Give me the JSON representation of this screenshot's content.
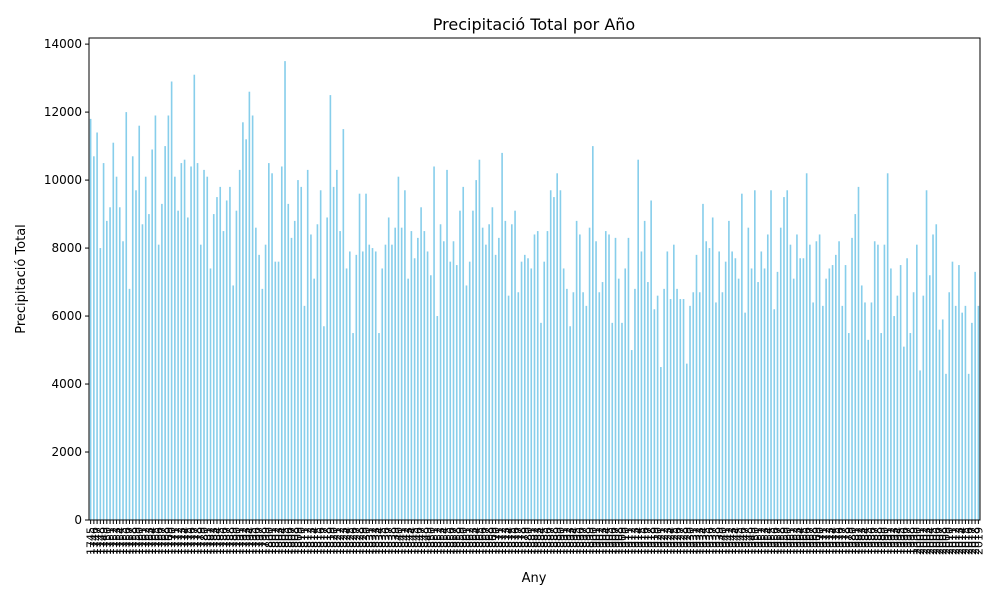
{
  "chart_data": {
    "type": "bar",
    "title": "Precipitació Total por Año",
    "x_label": "Any",
    "y_label": "Precipitació Total",
    "color": "#87ceeb",
    "categories": [
      1745,
      1746,
      1747,
      1748,
      1749,
      1750,
      1751,
      1752,
      1753,
      1754,
      1755,
      1756,
      1757,
      1758,
      1759,
      1760,
      1761,
      1762,
      1763,
      1764,
      1765,
      1766,
      1767,
      1768,
      1769,
      1770,
      1771,
      1772,
      1773,
      1774,
      1775,
      1776,
      1777,
      1778,
      1779,
      1780,
      1781,
      1782,
      1783,
      1784,
      1785,
      1786,
      1787,
      1788,
      1789,
      1790,
      1791,
      1792,
      1793,
      1794,
      1795,
      1796,
      1797,
      1798,
      1799,
      1800,
      1801,
      1802,
      1803,
      1804,
      1805,
      1806,
      1807,
      1808,
      1809,
      1810,
      1811,
      1812,
      1813,
      1814,
      1815,
      1816,
      1817,
      1818,
      1819,
      1820,
      1821,
      1822,
      1823,
      1824,
      1825,
      1826,
      1827,
      1828,
      1829,
      1830,
      1831,
      1832,
      1833,
      1834,
      1835,
      1836,
      1837,
      1838,
      1839,
      1840,
      1841,
      1842,
      1843,
      1844,
      1845,
      1846,
      1847,
      1848,
      1849,
      1850,
      1851,
      1852,
      1853,
      1854,
      1855,
      1856,
      1857,
      1858,
      1859,
      1860,
      1861,
      1862,
      1863,
      1864,
      1865,
      1866,
      1867,
      1868,
      1869,
      1870,
      1871,
      1872,
      1873,
      1874,
      1875,
      1876,
      1877,
      1878,
      1879,
      1880,
      1881,
      1882,
      1883,
      1884,
      1885,
      1886,
      1887,
      1888,
      1889,
      1890,
      1891,
      1892,
      1893,
      1894,
      1895,
      1896,
      1897,
      1898,
      1899,
      1900,
      1901,
      1902,
      1903,
      1904,
      1905,
      1906,
      1907,
      1908,
      1909,
      1910,
      1911,
      1912,
      1913,
      1914,
      1915,
      1916,
      1917,
      1918,
      1919,
      1920,
      1921,
      1922,
      1923,
      1924,
      1925,
      1926,
      1927,
      1928,
      1929,
      1930,
      1931,
      1932,
      1933,
      1934,
      1935,
      1936,
      1937,
      1938,
      1939,
      1940,
      1941,
      1942,
      1943,
      1944,
      1945,
      1946,
      1947,
      1948,
      1949,
      1950,
      1951,
      1952,
      1953,
      1954,
      1955,
      1956,
      1957,
      1958,
      1959,
      1960,
      1961,
      1962,
      1963,
      1964,
      1965,
      1966,
      1967,
      1968,
      1969,
      1970,
      1971,
      1972,
      1973,
      1974,
      1975,
      1976,
      1977,
      1978,
      1979,
      1980,
      1981,
      1982,
      1983,
      1984,
      1985,
      1986,
      1987,
      1988,
      1989,
      1990,
      1991,
      1992,
      1993,
      1994,
      1995,
      1996,
      1997,
      1998,
      1999,
      2000,
      2001,
      2002,
      2003,
      2004,
      2005,
      2006,
      2007,
      2008,
      2009,
      2010,
      2011,
      2012,
      2013,
      2014,
      2015,
      2016,
      2017,
      2018,
      2019
    ],
    "values": [
      11800,
      10700,
      11400,
      8000,
      10500,
      8800,
      9200,
      11100,
      10100,
      9200,
      8200,
      12000,
      6800,
      10700,
      9700,
      11600,
      8700,
      10100,
      9000,
      10900,
      11900,
      8100,
      9300,
      11000,
      11900,
      12900,
      10100,
      9100,
      10500,
      10600,
      8900,
      10400,
      13100,
      10500,
      8100,
      10300,
      10100,
      7400,
      9000,
      9500,
      9800,
      8500,
      9400,
      9800,
      6900,
      9100,
      10300,
      11700,
      11200,
      12600,
      11900,
      8600,
      7800,
      6800,
      8100,
      10500,
      10200,
      7600,
      7600,
      10400,
      13500,
      9300,
      8300,
      8800,
      10000,
      9800,
      6300,
      10300,
      8400,
      7100,
      8700,
      9700,
      5700,
      8900,
      12500,
      9800,
      10300,
      8500,
      11500,
      7400,
      7900,
      5500,
      7800,
      9600,
      7900,
      9600,
      8100,
      8000,
      7900,
      5500,
      7400,
      8100,
      8900,
      8100,
      8600,
      10100,
      8600,
      9700,
      7100,
      8500,
      7700,
      8300,
      9200,
      8500,
      7900,
      7200,
      10400,
      6000,
      8700,
      8200,
      10300,
      7600,
      8200,
      7500,
      9100,
      9800,
      6900,
      7600,
      9100,
      10000,
      10600,
      8600,
      8100,
      8700,
      9200,
      7800,
      8300,
      10800,
      8800,
      6600,
      8700,
      9100,
      6700,
      7600,
      7800,
      7700,
      7400,
      8400,
      8500,
      5800,
      7600,
      8500,
      9700,
      9500,
      10200,
      9700,
      7400,
      6800,
      5700,
      6700,
      8800,
      8400,
      6700,
      6300,
      8600,
      11000,
      8200,
      6700,
      7000,
      8500,
      8400,
      5800,
      8300,
      7100,
      5800,
      7400,
      8300,
      5000,
      6800,
      10600,
      7900,
      8800,
      7000,
      9400,
      6200,
      6600,
      4500,
      6800,
      7900,
      6500,
      8100,
      6800,
      6500,
      6500,
      4600,
      6300,
      6700,
      7800,
      6700,
      9300,
      8200,
      8000,
      8900,
      6400,
      7900,
      6700,
      7600,
      8800,
      7900,
      7700,
      7100,
      9600,
      6100,
      8600,
      7400,
      9700,
      7000,
      7900,
      7400,
      8400,
      9700,
      6200,
      7300,
      8600,
      9500,
      9700,
      8100,
      7100,
      8400,
      7700,
      7700,
      10200,
      8100,
      6400,
      8200,
      8400,
      6300,
      7100,
      7400,
      7500,
      7800,
      8200,
      6300,
      7500,
      5500,
      8300,
      9000,
      9800,
      6900,
      6400,
      5300,
      6400,
      8200,
      8100,
      5500,
      8100,
      10200,
      7400,
      6000,
      6600,
      7500,
      5100,
      7700,
      5500,
      6700,
      8100,
      4400,
      6600,
      9700,
      7200,
      8400,
      8700,
      5600,
      5900,
      4300,
      6700,
      7600,
      6300,
      7500,
      6100,
      6300,
      4300,
      5800,
      7300,
      6300
    ],
    "ylim": [
      0,
      14180
    ],
    "yticks": [
      0,
      2000,
      4000,
      6000,
      8000,
      10000,
      12000,
      14000
    ]
  }
}
